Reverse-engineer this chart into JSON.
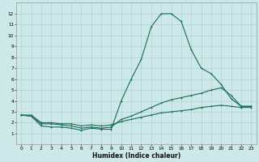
{
  "xlabel": "Humidex (Indice chaleur)",
  "ylabel": "",
  "bg_color": "#cce8e8",
  "grid_color": "#aacccc",
  "line_color": "#1a6b5a",
  "xlim": [
    -0.5,
    23.5
  ],
  "ylim": [
    0,
    13
  ],
  "xticks": [
    0,
    1,
    2,
    3,
    4,
    5,
    6,
    7,
    8,
    9,
    10,
    11,
    12,
    13,
    14,
    15,
    16,
    17,
    18,
    19,
    20,
    21,
    22,
    23
  ],
  "yticks": [
    1,
    2,
    3,
    4,
    5,
    6,
    7,
    8,
    9,
    10,
    11,
    12
  ],
  "series1_x": [
    0,
    1,
    2,
    3,
    4,
    5,
    6,
    7,
    8,
    9,
    10,
    11,
    12,
    13,
    14,
    15,
    16,
    17,
    18,
    19,
    20,
    21,
    22,
    23
  ],
  "series1_y": [
    2.7,
    2.6,
    1.7,
    1.6,
    1.6,
    1.5,
    1.3,
    1.5,
    1.4,
    1.4,
    4.0,
    6.0,
    7.8,
    10.8,
    12.0,
    12.0,
    11.3,
    8.7,
    7.0,
    6.5,
    5.5,
    4.2,
    3.5,
    3.5
  ],
  "series2_x": [
    0,
    1,
    2,
    3,
    4,
    5,
    6,
    7,
    8,
    9,
    10,
    11,
    12,
    13,
    14,
    15,
    16,
    17,
    18,
    19,
    20,
    21,
    22,
    23
  ],
  "series2_y": [
    2.7,
    2.6,
    1.9,
    1.9,
    1.8,
    1.7,
    1.5,
    1.6,
    1.5,
    1.6,
    2.3,
    2.6,
    3.0,
    3.4,
    3.8,
    4.1,
    4.3,
    4.5,
    4.7,
    5.0,
    5.2,
    4.5,
    3.5,
    3.5
  ],
  "series3_x": [
    0,
    1,
    2,
    3,
    4,
    5,
    6,
    7,
    8,
    9,
    10,
    11,
    12,
    13,
    14,
    15,
    16,
    17,
    18,
    19,
    20,
    21,
    22,
    23
  ],
  "series3_y": [
    2.7,
    2.7,
    2.0,
    2.0,
    1.9,
    1.9,
    1.7,
    1.8,
    1.7,
    1.8,
    2.1,
    2.3,
    2.5,
    2.7,
    2.9,
    3.0,
    3.1,
    3.2,
    3.4,
    3.5,
    3.6,
    3.5,
    3.4,
    3.4
  ],
  "xlabel_fontsize": 5.5,
  "tick_fontsize": 4.2,
  "marker_size": 2.0,
  "line_width": 0.8
}
